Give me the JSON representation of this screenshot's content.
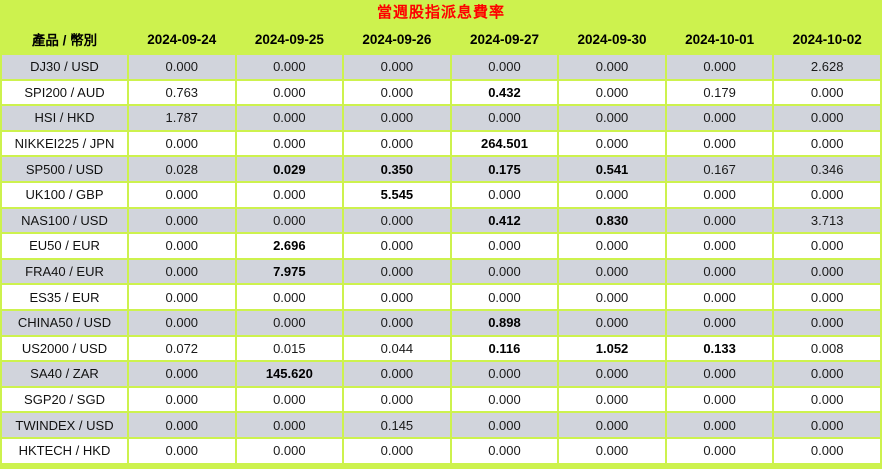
{
  "title": "當週股指派息費率",
  "colors": {
    "background": "#cdf24e",
    "title_text": "#ff0000",
    "row_gray": "#d1d4dc",
    "row_white": "#ffffff",
    "text": "#000000"
  },
  "table": {
    "header": {
      "product_label": "產品 / 幣別",
      "dates": [
        "2024-09-24",
        "2024-09-25",
        "2024-09-26",
        "2024-09-27",
        "2024-09-30",
        "2024-10-01",
        "2024-10-02"
      ]
    },
    "rows": [
      {
        "label": "DJ30 / USD",
        "values": [
          "0.000",
          "0.000",
          "0.000",
          "0.000",
          "0.000",
          "0.000",
          "2.628"
        ],
        "bold": [
          0,
          0,
          0,
          0,
          0,
          0,
          0
        ]
      },
      {
        "label": "SPI200 / AUD",
        "values": [
          "0.763",
          "0.000",
          "0.000",
          "0.432",
          "0.000",
          "0.179",
          "0.000"
        ],
        "bold": [
          0,
          0,
          0,
          1,
          0,
          0,
          0
        ]
      },
      {
        "label": "HSI / HKD",
        "values": [
          "1.787",
          "0.000",
          "0.000",
          "0.000",
          "0.000",
          "0.000",
          "0.000"
        ],
        "bold": [
          0,
          0,
          0,
          0,
          0,
          0,
          0
        ]
      },
      {
        "label": "NIKKEI225 / JPN",
        "values": [
          "0.000",
          "0.000",
          "0.000",
          "264.501",
          "0.000",
          "0.000",
          "0.000"
        ],
        "bold": [
          0,
          0,
          0,
          1,
          0,
          0,
          0
        ]
      },
      {
        "label": "SP500 / USD",
        "values": [
          "0.028",
          "0.029",
          "0.350",
          "0.175",
          "0.541",
          "0.167",
          "0.346"
        ],
        "bold": [
          0,
          1,
          1,
          1,
          1,
          0,
          0
        ]
      },
      {
        "label": "UK100 / GBP",
        "values": [
          "0.000",
          "0.000",
          "5.545",
          "0.000",
          "0.000",
          "0.000",
          "0.000"
        ],
        "bold": [
          0,
          0,
          1,
          0,
          0,
          0,
          0
        ]
      },
      {
        "label": "NAS100 / USD",
        "values": [
          "0.000",
          "0.000",
          "0.000",
          "0.412",
          "0.830",
          "0.000",
          "3.713"
        ],
        "bold": [
          0,
          0,
          0,
          1,
          1,
          0,
          0
        ]
      },
      {
        "label": "EU50 / EUR",
        "values": [
          "0.000",
          "2.696",
          "0.000",
          "0.000",
          "0.000",
          "0.000",
          "0.000"
        ],
        "bold": [
          0,
          1,
          0,
          0,
          0,
          0,
          0
        ]
      },
      {
        "label": "FRA40 / EUR",
        "values": [
          "0.000",
          "7.975",
          "0.000",
          "0.000",
          "0.000",
          "0.000",
          "0.000"
        ],
        "bold": [
          0,
          1,
          0,
          0,
          0,
          0,
          0
        ]
      },
      {
        "label": "ES35 / EUR",
        "values": [
          "0.000",
          "0.000",
          "0.000",
          "0.000",
          "0.000",
          "0.000",
          "0.000"
        ],
        "bold": [
          0,
          0,
          0,
          0,
          0,
          0,
          0
        ]
      },
      {
        "label": "CHINA50 / USD",
        "values": [
          "0.000",
          "0.000",
          "0.000",
          "0.898",
          "0.000",
          "0.000",
          "0.000"
        ],
        "bold": [
          0,
          0,
          0,
          1,
          0,
          0,
          0
        ]
      },
      {
        "label": "US2000 / USD",
        "values": [
          "0.072",
          "0.015",
          "0.044",
          "0.116",
          "1.052",
          "0.133",
          "0.008"
        ],
        "bold": [
          0,
          0,
          0,
          1,
          1,
          1,
          0
        ]
      },
      {
        "label": "SA40 / ZAR",
        "values": [
          "0.000",
          "145.620",
          "0.000",
          "0.000",
          "0.000",
          "0.000",
          "0.000"
        ],
        "bold": [
          0,
          1,
          0,
          0,
          0,
          0,
          0
        ]
      },
      {
        "label": "SGP20 / SGD",
        "values": [
          "0.000",
          "0.000",
          "0.000",
          "0.000",
          "0.000",
          "0.000",
          "0.000"
        ],
        "bold": [
          0,
          0,
          0,
          0,
          0,
          0,
          0
        ]
      },
      {
        "label": "TWINDEX / USD",
        "values": [
          "0.000",
          "0.000",
          "0.145",
          "0.000",
          "0.000",
          "0.000",
          "0.000"
        ],
        "bold": [
          0,
          0,
          0,
          0,
          0,
          0,
          0
        ]
      },
      {
        "label": "HKTECH / HKD",
        "values": [
          "0.000",
          "0.000",
          "0.000",
          "0.000",
          "0.000",
          "0.000",
          "0.000"
        ],
        "bold": [
          0,
          0,
          0,
          0,
          0,
          0,
          0
        ]
      }
    ]
  }
}
